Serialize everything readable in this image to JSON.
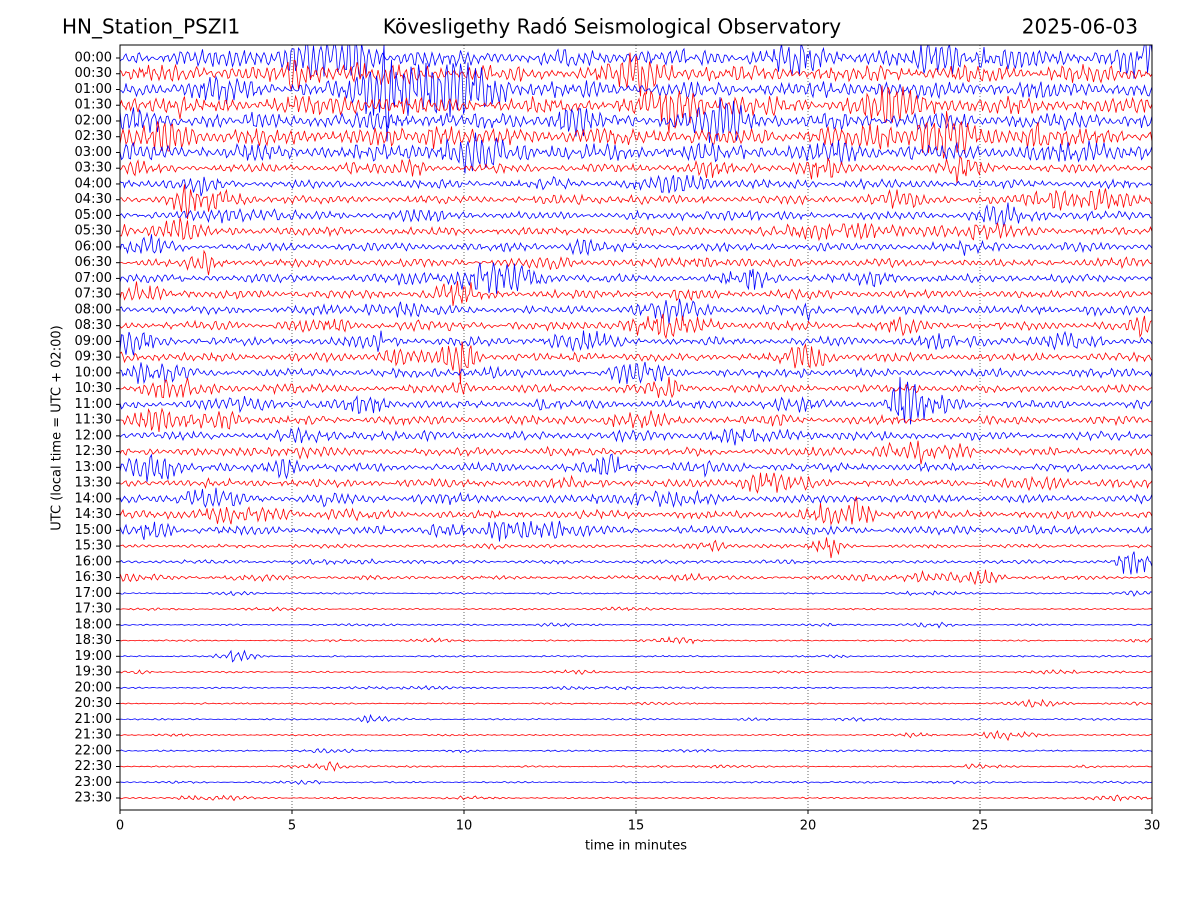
{
  "chart_data": {
    "type": "helicorder",
    "station": "HN_Station_PSZI1",
    "title": "Kövesligethy Radó Seismological Observatory",
    "date": "2025-06-03",
    "xlabel": "time in minutes",
    "ylabel": "UTC (local time = UTC + 02:00)",
    "categories": [
      "00:00",
      "00:30",
      "01:00",
      "01:30",
      "02:00",
      "02:30",
      "03:00",
      "03:30",
      "04:00",
      "04:30",
      "05:00",
      "05:30",
      "06:00",
      "06:30",
      "07:00",
      "07:30",
      "08:00",
      "08:30",
      "09:00",
      "09:30",
      "10:00",
      "10:30",
      "11:00",
      "11:30",
      "12:00",
      "12:30",
      "13:00",
      "13:30",
      "14:00",
      "14:30",
      "15:00",
      "15:30",
      "16:00",
      "16:30",
      "17:00",
      "17:30",
      "18:00",
      "18:30",
      "19:00",
      "19:30",
      "20:00",
      "20:30",
      "21:00",
      "21:30",
      "22:00",
      "22:30",
      "23:00",
      "23:30"
    ],
    "xlim": [
      0,
      30
    ],
    "xticks": [
      0,
      5,
      10,
      15,
      20,
      25,
      30
    ],
    "colors": [
      "#0000ff",
      "#ff0000"
    ],
    "grid": true
  }
}
